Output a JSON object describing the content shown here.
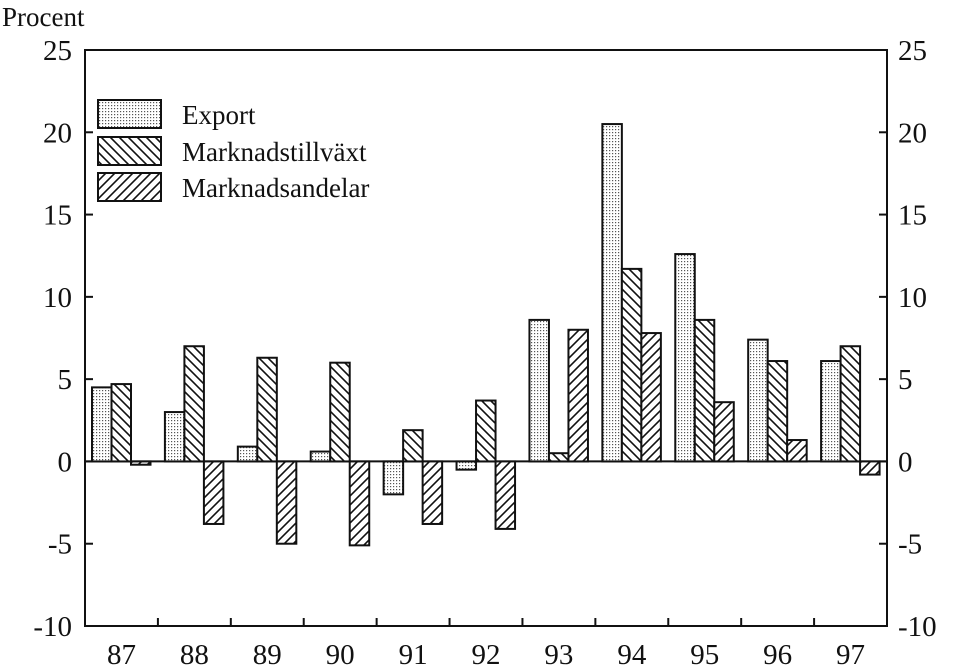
{
  "chart_data": {
    "type": "bar",
    "ylabel": "Procent",
    "categories": [
      "87",
      "88",
      "89",
      "90",
      "91",
      "92",
      "93",
      "94",
      "95",
      "96",
      "97"
    ],
    "ylim": [
      -10,
      25
    ],
    "yticks": [
      "25",
      "20",
      "15",
      "10",
      "5",
      "0",
      "-5",
      "-10"
    ],
    "legend_position": "top-left",
    "grid": false,
    "series": [
      {
        "name": "Export",
        "pattern": "dots",
        "values": [
          4.5,
          3.0,
          0.9,
          0.6,
          -2.0,
          -0.5,
          8.6,
          20.5,
          12.6,
          7.4,
          6.1
        ]
      },
      {
        "name": "Marknadstillväxt",
        "pattern": "backslash",
        "values": [
          4.7,
          7.0,
          6.3,
          6.0,
          1.9,
          3.7,
          0.5,
          11.7,
          8.6,
          6.1,
          7.0
        ]
      },
      {
        "name": "Marknadsandelar",
        "pattern": "slash",
        "values": [
          -0.2,
          -3.8,
          -5.0,
          -5.1,
          -3.8,
          -4.1,
          8.0,
          7.8,
          3.6,
          1.3,
          -0.8
        ]
      }
    ]
  }
}
